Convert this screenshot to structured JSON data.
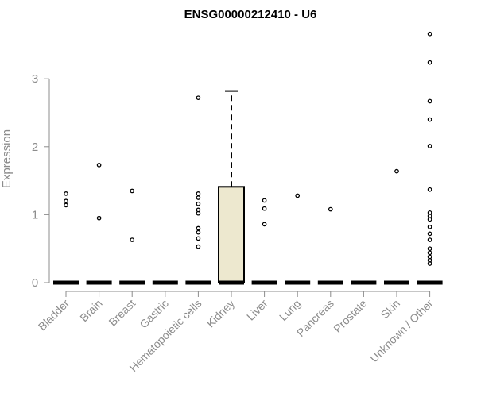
{
  "chart_data": {
    "type": "boxplot",
    "title": "ENSG00000212410 - U6",
    "xlabel": "",
    "ylabel": "Expression",
    "ylim": [
      0,
      3.7
    ],
    "yticks": [
      0,
      1,
      2,
      3
    ],
    "grid": false,
    "categories": [
      "Bladder",
      "Brain",
      "Breast",
      "Gastric",
      "Hematopoietic cells",
      "Kidney",
      "Liver",
      "Lung",
      "Pancreas",
      "Prostate",
      "Skin",
      "Unknown / Other"
    ],
    "boxes": [
      {
        "category": "Bladder",
        "q1": 0,
        "median": 0,
        "q3": 0,
        "whisker_low": 0,
        "whisker_high": 0,
        "outliers": [
          1.31,
          1.2,
          1.14
        ]
      },
      {
        "category": "Brain",
        "q1": 0,
        "median": 0,
        "q3": 0,
        "whisker_low": 0,
        "whisker_high": 0,
        "outliers": [
          1.73,
          0.95
        ]
      },
      {
        "category": "Breast",
        "q1": 0,
        "median": 0,
        "q3": 0,
        "whisker_low": 0,
        "whisker_high": 0,
        "outliers": [
          1.35,
          0.63
        ]
      },
      {
        "category": "Gastric",
        "q1": 0,
        "median": 0,
        "q3": 0,
        "whisker_low": 0,
        "whisker_high": 0,
        "outliers": []
      },
      {
        "category": "Hematopoietic cells",
        "q1": 0,
        "median": 0,
        "q3": 0,
        "whisker_low": 0,
        "whisker_high": 0,
        "outliers": [
          2.72,
          1.31,
          1.25,
          1.16,
          1.07,
          1.02,
          0.8,
          0.74,
          0.65,
          0.53
        ]
      },
      {
        "category": "Kidney",
        "q1": 0,
        "median": 0,
        "q3": 1.41,
        "whisker_low": 0,
        "whisker_high": 2.82,
        "outliers": []
      },
      {
        "category": "Liver",
        "q1": 0,
        "median": 0,
        "q3": 0,
        "whisker_low": 0,
        "whisker_high": 0,
        "outliers": [
          1.21,
          1.09,
          0.86
        ]
      },
      {
        "category": "Lung",
        "q1": 0,
        "median": 0,
        "q3": 0,
        "whisker_low": 0,
        "whisker_high": 0,
        "outliers": [
          1.28
        ]
      },
      {
        "category": "Pancreas",
        "q1": 0,
        "median": 0,
        "q3": 0,
        "whisker_low": 0,
        "whisker_high": 0,
        "outliers": [
          1.08
        ]
      },
      {
        "category": "Prostate",
        "q1": 0,
        "median": 0,
        "q3": 0,
        "whisker_low": 0,
        "whisker_high": 0,
        "outliers": []
      },
      {
        "category": "Skin",
        "q1": 0,
        "median": 0,
        "q3": 0,
        "whisker_low": 0,
        "whisker_high": 0,
        "outliers": [
          1.64
        ]
      },
      {
        "category": "Unknown / Other",
        "q1": 0,
        "median": 0,
        "q3": 0,
        "whisker_low": 0,
        "whisker_high": 0,
        "outliers": [
          3.66,
          3.24,
          2.67,
          2.4,
          2.01,
          1.37,
          1.03,
          0.98,
          0.93,
          0.82,
          0.72,
          0.63,
          0.5,
          0.44,
          0.38,
          0.33,
          0.28
        ]
      }
    ],
    "colors": {
      "box_fill": "#ede8cf",
      "box_stroke": "#000000",
      "axis": "#8c8c8c",
      "title": "#000000"
    }
  }
}
